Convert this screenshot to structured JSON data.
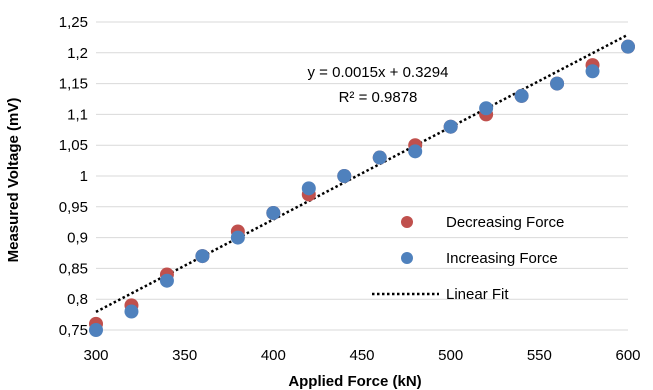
{
  "chart_data": {
    "type": "scatter",
    "title": "",
    "xlabel": "Applied Force (kN)",
    "ylabel": "Measured Voltage (mV)",
    "xlim": [
      300,
      600
    ],
    "ylim": [
      0.75,
      1.25
    ],
    "x_ticks": [
      300,
      350,
      400,
      450,
      500,
      550,
      600
    ],
    "y_ticks": [
      0.75,
      0.8,
      0.85,
      0.9,
      0.95,
      1.0,
      1.05,
      1.1,
      1.15,
      1.2,
      1.25
    ],
    "x_tick_labels": [
      "300",
      "350",
      "400",
      "450",
      "500",
      "550",
      "600"
    ],
    "y_tick_labels": [
      "0,75",
      "0,8",
      "0,85",
      "0,9",
      "0,95",
      "1",
      "1,05",
      "1,1",
      "1,15",
      "1,2",
      "1,25"
    ],
    "grid": "horizontal",
    "legend_position": "bottom-right",
    "series": [
      {
        "name": "Decreasing Force",
        "color": "#C0504D",
        "marker": "circle",
        "x": [
          300,
          320,
          340,
          360,
          380,
          400,
          420,
          440,
          460,
          480,
          500,
          520,
          540,
          560,
          580,
          600
        ],
        "y": [
          0.76,
          0.79,
          0.84,
          0.87,
          0.91,
          0.94,
          0.97,
          1.0,
          1.03,
          1.05,
          1.08,
          1.1,
          1.13,
          1.15,
          1.18,
          1.21
        ]
      },
      {
        "name": "Increasing Force",
        "color": "#4F81BD",
        "marker": "circle",
        "x": [
          300,
          320,
          340,
          360,
          380,
          400,
          420,
          440,
          460,
          480,
          500,
          520,
          540,
          560,
          580,
          600
        ],
        "y": [
          0.75,
          0.78,
          0.83,
          0.87,
          0.9,
          0.94,
          0.98,
          1.0,
          1.03,
          1.04,
          1.08,
          1.11,
          1.13,
          1.15,
          1.17,
          1.21
        ]
      },
      {
        "name": "Linear Fit",
        "color": "#000000",
        "style": "dotted",
        "slope": 0.0015,
        "intercept": 0.3294
      }
    ],
    "annotations": [
      {
        "text": "y = 0.0015x + 0.3294"
      },
      {
        "text": "R² = 0.9878"
      }
    ]
  }
}
